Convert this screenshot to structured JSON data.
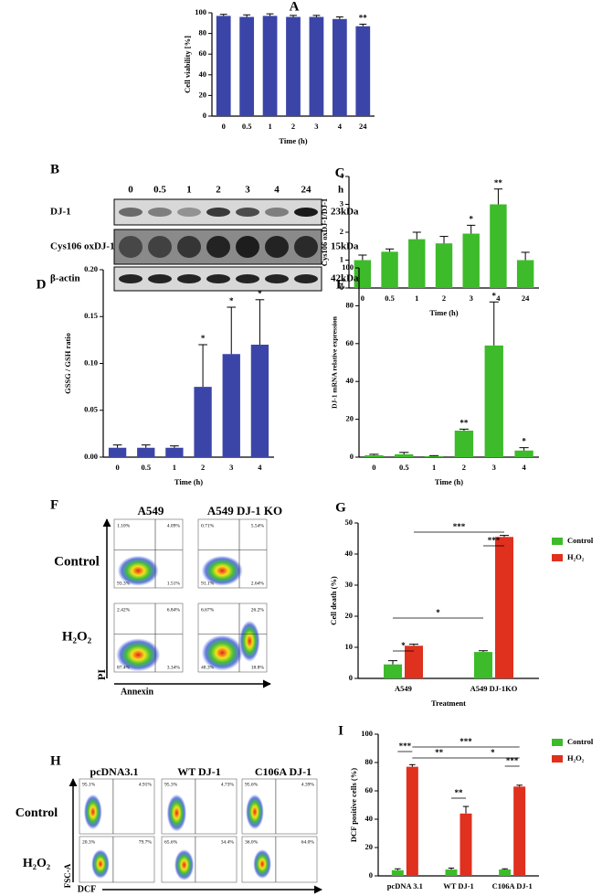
{
  "chart_data": [
    {
      "type": "bar",
      "panel": "A",
      "ylabel": "Cell viability [%]",
      "xlabel": "Time (h)",
      "categories": [
        "0",
        "0.5",
        "1",
        "2",
        "3",
        "4",
        "24"
      ],
      "values": [
        97,
        96,
        97,
        96,
        96,
        94,
        87
      ],
      "errors": [
        1.5,
        2,
        2,
        1.5,
        1.5,
        2,
        2
      ],
      "color": "#3b45a8",
      "ylim": [
        0,
        100
      ],
      "yticks": [
        0,
        20,
        40,
        60,
        80,
        100
      ],
      "star_labels": [
        null,
        null,
        null,
        null,
        null,
        null,
        "**"
      ]
    },
    {
      "type": "bar",
      "panel": "C",
      "ylabel": "Cys106 oxDJ-1/DJ-1",
      "xlabel": "Time (h)",
      "categories": [
        "0",
        "0.5",
        "1",
        "2",
        "3",
        "4",
        "24"
      ],
      "values": [
        1.0,
        1.3,
        1.75,
        1.6,
        1.95,
        3.0,
        1.0
      ],
      "errors": [
        0.18,
        0.1,
        0.25,
        0.25,
        0.3,
        0.55,
        0.28
      ],
      "color": "#3dbb2a",
      "ylim": [
        0,
        4
      ],
      "yticks": [
        0,
        1,
        2,
        3,
        4
      ],
      "star_labels": [
        null,
        null,
        null,
        null,
        "*",
        "**",
        null
      ]
    },
    {
      "type": "bar",
      "panel": "D",
      "ylabel": "GSSG / GSH ratio",
      "xlabel": "Time (h)",
      "categories": [
        "0",
        "0.5",
        "1",
        "2",
        "3",
        "4"
      ],
      "values": [
        0.01,
        0.01,
        0.01,
        0.075,
        0.11,
        0.12
      ],
      "errors": [
        0.003,
        0.003,
        0.002,
        0.045,
        0.05,
        0.048
      ],
      "color": "#3b45a8",
      "ylim": [
        0,
        0.2
      ],
      "yticks": [
        {
          "value": 0,
          "label": "0.00"
        },
        {
          "value": 0.05,
          "label": "0.05"
        },
        {
          "value": 0.1,
          "label": "0.10"
        },
        {
          "value": 0.15,
          "label": "0.15"
        },
        {
          "value": 0.2,
          "label": "0.20"
        }
      ],
      "star_labels": [
        null,
        null,
        null,
        "*",
        "*",
        "*"
      ]
    },
    {
      "type": "bar",
      "panel": "E",
      "ylabel": "DJ-1 mRNA relative expression",
      "xlabel": "Time (h)",
      "categories": [
        "0",
        "0.5",
        "1",
        "2",
        "3",
        "4"
      ],
      "values": [
        1,
        1.5,
        0.5,
        14,
        59,
        3.5
      ],
      "errors": [
        0.5,
        1,
        0.3,
        0.8,
        23,
        1.5
      ],
      "color": "#3dbb2a",
      "ylim": [
        0,
        100
      ],
      "yticks": [
        0,
        20,
        40,
        60,
        80,
        100
      ],
      "star_labels": [
        null,
        null,
        null,
        "**",
        "*",
        "*"
      ]
    },
    {
      "type": "grouped_bar",
      "panel": "G",
      "ylabel": "Cell death (%)",
      "xlabel": "Treatment",
      "categories": [
        "A549",
        "A549 DJ-1KO"
      ],
      "series": [
        {
          "name": "Control",
          "color": "#3dbb2a",
          "values": [
            4.5,
            8.5
          ],
          "errors": [
            1.2,
            0.4
          ]
        },
        {
          "name": "H₂O₂",
          "color": "#e0301e",
          "values": [
            10.5,
            45.5
          ],
          "errors": [
            0.5,
            0.5
          ]
        }
      ],
      "ylim": [
        0,
        50
      ],
      "yticks": [
        0,
        10,
        20,
        30,
        40,
        50
      ],
      "legend": "right",
      "comparisons": [
        "***",
        "***",
        "*",
        "*"
      ]
    },
    {
      "type": "grouped_bar",
      "panel": "I",
      "ylabel": "DCF positive cells (%)",
      "xlabel": "Treatment",
      "categories": [
        "pcDNA 3.1",
        "WT DJ-1",
        "C106A DJ-1"
      ],
      "series": [
        {
          "name": "Control",
          "color": "#3dbb2a",
          "values": [
            4,
            4.5,
            4.5
          ],
          "errors": [
            1,
            1,
            0.5
          ]
        },
        {
          "name": "H₂O₂",
          "color": "#e0301e",
          "values": [
            77,
            44,
            63
          ],
          "errors": [
            1.5,
            5,
            1
          ]
        }
      ],
      "ylim": [
        0,
        100
      ],
      "yticks": [
        0,
        20,
        40,
        60,
        80,
        100
      ],
      "legend": "right",
      "comparisons": [
        "***",
        "**",
        "*",
        "***",
        "***",
        "**"
      ]
    }
  ],
  "blot": {
    "panel": "B",
    "lanes": [
      "0",
      "0.5",
      "1",
      "2",
      "3",
      "4",
      "24"
    ],
    "unit": "h",
    "rows": [
      {
        "name": "DJ-1",
        "size": "23kDa"
      },
      {
        "name": "Cys106 oxDJ-1",
        "size": "15kDa"
      },
      {
        "name": "β-actin",
        "size": "42kDa"
      }
    ]
  },
  "flow_f": {
    "panel": "F",
    "columns": [
      "A549",
      "A549 DJ-1 KO"
    ],
    "rows": [
      "Control",
      "H₂O₂"
    ],
    "y_axis": "PI",
    "x_axis": "Annexin",
    "quadrants": [
      [
        [
          "1.10%",
          "4.09%",
          "93.3%",
          "1.51%"
        ],
        [
          "0.71%",
          "5.54%",
          "91.1%",
          "2.64%"
        ]
      ],
      [
        [
          "2.42%",
          "6.84%",
          "87.4%",
          "3.34%"
        ],
        [
          "6.67%",
          "26.2%",
          "48.3%",
          "18.8%"
        ]
      ]
    ]
  },
  "flow_h": {
    "panel": "H",
    "columns": [
      "pcDNA3.1",
      "WT DJ-1",
      "C106A DJ-1"
    ],
    "rows": [
      "Control",
      "H₂O₂"
    ],
    "y_axis": "FSC-A",
    "x_axis": "DCF",
    "quadrants": [
      [
        [
          "95.1%",
          "4.91%"
        ],
        [
          "95.3%",
          "4.73%"
        ],
        [
          "95.6%",
          "4.39%"
        ]
      ],
      [
        [
          "20.3%",
          "79.7%"
        ],
        [
          "65.6%",
          "34.4%"
        ],
        [
          "36.0%",
          "64.0%"
        ]
      ]
    ]
  }
}
